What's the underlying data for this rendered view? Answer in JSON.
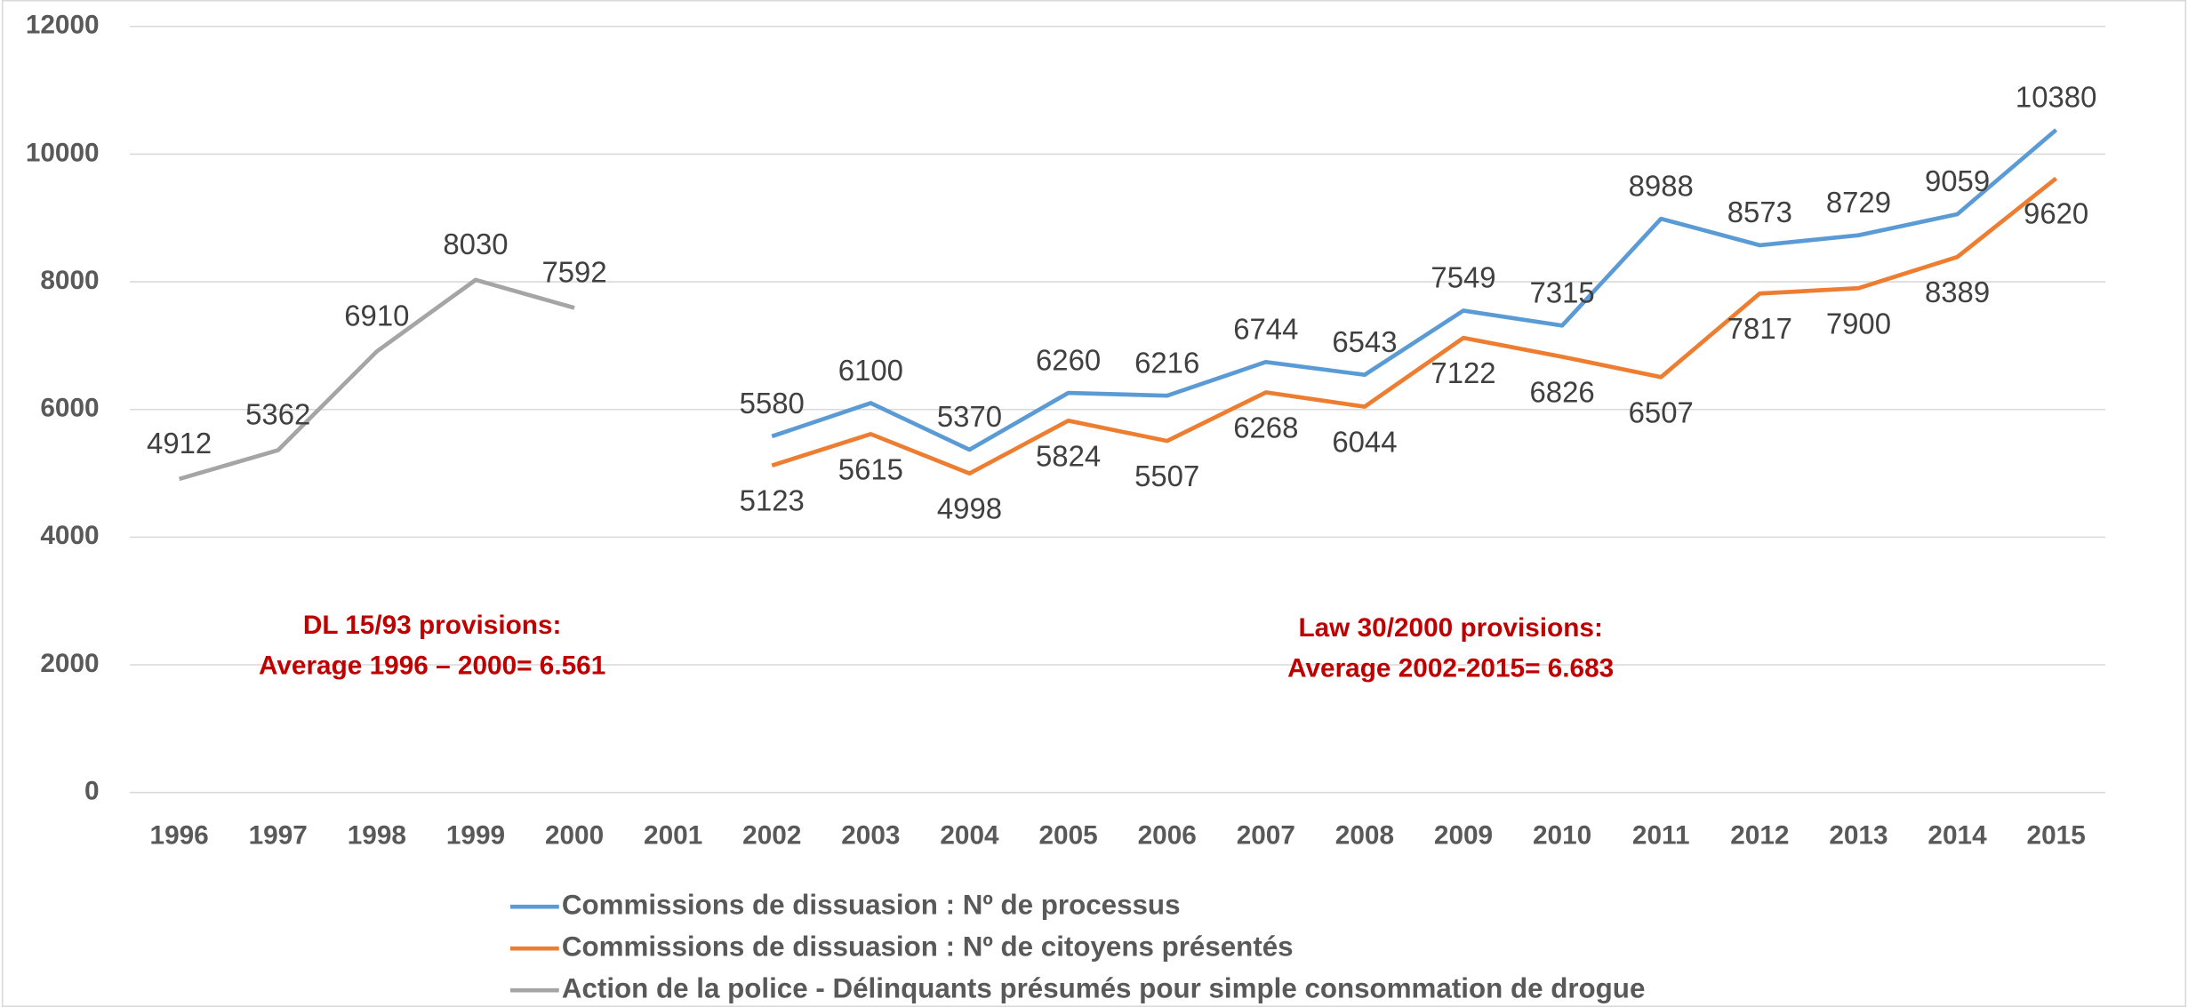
{
  "chart_data": {
    "type": "line",
    "categories": [
      "1996",
      "1997",
      "1998",
      "1999",
      "2000",
      "2001",
      "2002",
      "2003",
      "2004",
      "2005",
      "2006",
      "2007",
      "2008",
      "2009",
      "2010",
      "2011",
      "2012",
      "2013",
      "2014",
      "2015"
    ],
    "series": [
      {
        "name": "Commissions de dissuasion : Nº de processus",
        "color": "#5b9bd5",
        "values": [
          null,
          null,
          null,
          null,
          null,
          null,
          5580,
          6100,
          5370,
          6260,
          6216,
          6744,
          6543,
          7549,
          7315,
          8988,
          8573,
          8729,
          9059,
          10380
        ]
      },
      {
        "name": "Commissions de dissuasion : Nº de citoyens présentés",
        "color": "#ed7d31",
        "values": [
          null,
          null,
          null,
          null,
          null,
          null,
          5123,
          5615,
          4998,
          5824,
          5507,
          6268,
          6044,
          7122,
          6826,
          6507,
          7817,
          7900,
          8389,
          9620
        ]
      },
      {
        "name": "Action de la police - Délinquants présumés pour simple consommation de drogue",
        "color": "#a5a5a5",
        "values": [
          4912,
          5362,
          6910,
          8030,
          7592,
          null,
          null,
          null,
          null,
          null,
          null,
          null,
          null,
          null,
          null,
          null,
          null,
          null,
          null,
          null
        ]
      }
    ],
    "ylim": [
      0,
      12000
    ],
    "yticks": [
      0,
      2000,
      4000,
      6000,
      8000,
      10000,
      12000
    ],
    "grid": true,
    "annotations": [
      {
        "lines": [
          "DL 15/93 provisions:",
          "Average 1996 – 2000= 6.561"
        ]
      },
      {
        "lines": [
          "Law 30/2000 provisions:",
          "Average 2002-2015= 6.683"
        ]
      }
    ]
  }
}
